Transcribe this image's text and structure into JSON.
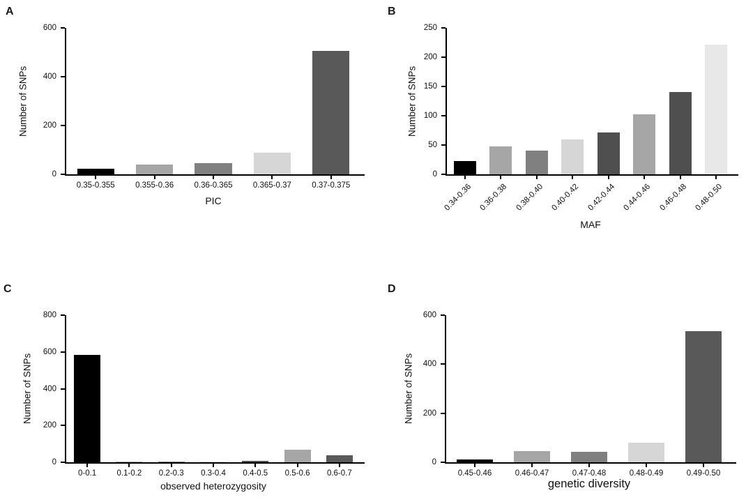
{
  "figure": {
    "background": "#ffffff",
    "axis_color": "#000000",
    "text_color": "#111111"
  },
  "chart_data": [
    {
      "id": "A",
      "panel_label": "A",
      "type": "bar",
      "title": "",
      "ylabel": "Number of SNPs",
      "xlabel": "PIC",
      "ylim": [
        0,
        600
      ],
      "yticks": [
        0,
        200,
        400,
        600
      ],
      "categories": [
        "0.35-0.355",
        "0.355-0.36",
        "0.36-0.365",
        "0.365-0.37",
        "0.37-0.375"
      ],
      "values": [
        24,
        40,
        47,
        88,
        505
      ],
      "bar_colors": [
        "#000000",
        "#a6a6a6",
        "#808080",
        "#d6d6d6",
        "#595959"
      ],
      "rotate_xticks": false,
      "grid": false,
      "legend": null
    },
    {
      "id": "B",
      "panel_label": "B",
      "type": "bar",
      "title": "",
      "ylabel": "Number of SNPs",
      "xlabel": "MAF",
      "ylim": [
        0,
        250
      ],
      "yticks": [
        0,
        50,
        100,
        150,
        200,
        250
      ],
      "categories": [
        "0.34-0.36",
        "0.36-0.38",
        "0.38-0.40",
        "0.40-0.42",
        "0.42-0.44",
        "0.44-0.46",
        "0.46-0.48",
        "0.48-0.50"
      ],
      "values": [
        23,
        48,
        41,
        60,
        72,
        102,
        141,
        222
      ],
      "bar_colors": [
        "#000000",
        "#a6a6a6",
        "#808080",
        "#d6d6d6",
        "#4f4f4f",
        "#a6a6a6",
        "#4f4f4f",
        "#e8e8e8"
      ],
      "rotate_xticks": true,
      "grid": false,
      "legend": null
    },
    {
      "id": "C",
      "panel_label": "C",
      "type": "bar",
      "title": "",
      "ylabel": "Number of SNPs",
      "xlabel": "observed heterozygosity",
      "ylim": [
        0,
        800
      ],
      "yticks": [
        0,
        200,
        400,
        600,
        800
      ],
      "categories": [
        "0-0.1",
        "0.1-0.2",
        "0.2-0.3",
        "0.3-0.4",
        "0.4-0.5",
        "0.5-0.6",
        "0.6-0.7"
      ],
      "values": [
        583,
        1,
        3,
        1,
        7,
        70,
        38
      ],
      "bar_colors": [
        "#000000",
        "#a6a6a6",
        "#808080",
        "#d6d6d6",
        "#4f4f4f",
        "#a6a6a6",
        "#595959"
      ],
      "rotate_xticks": false,
      "grid": false,
      "legend": null
    },
    {
      "id": "D",
      "panel_label": "D",
      "type": "bar",
      "title": "",
      "ylabel": "Number of SNPs",
      "xlabel": "genetic diversity",
      "ylim": [
        0,
        600
      ],
      "yticks": [
        0,
        200,
        400,
        600
      ],
      "categories": [
        "0.45-0.46",
        "0.46-0.47",
        "0.47-0.48",
        "0.48-0.49",
        "0.49-0.50"
      ],
      "values": [
        12,
        45,
        43,
        79,
        534
      ],
      "bar_colors": [
        "#000000",
        "#a6a6a6",
        "#808080",
        "#d6d6d6",
        "#595959"
      ],
      "rotate_xticks": false,
      "grid": false,
      "legend": null
    }
  ]
}
